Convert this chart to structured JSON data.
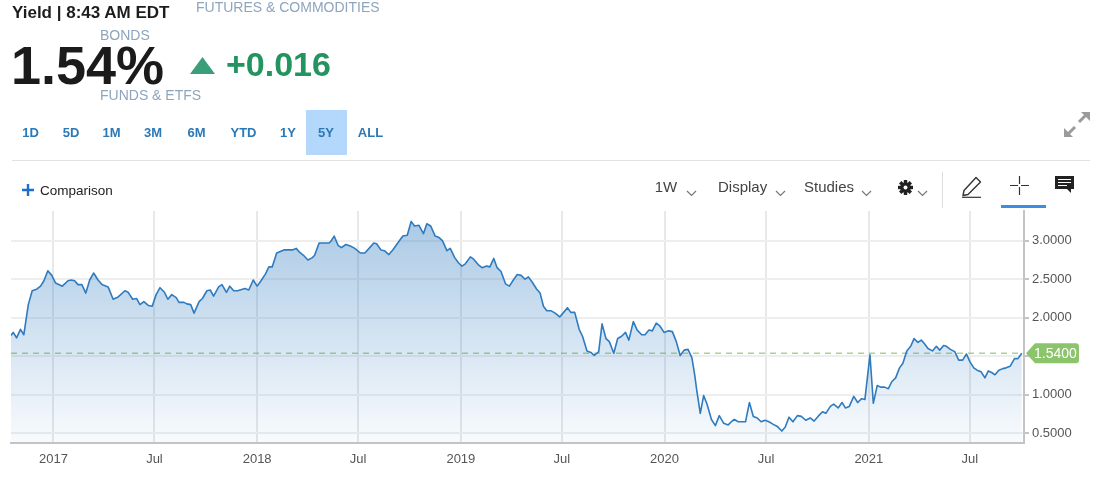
{
  "chart_data": {
    "type": "area",
    "title": "Yield | 8:43 AM EDT",
    "annotations": [
      "1.54%",
      "+0.016",
      "FUTURES & COMMODITIES",
      "BONDS",
      "FUNDS & ETFS",
      "1D",
      "5D",
      "1M",
      "3M",
      "6M",
      "YTD",
      "1Y",
      "5Y",
      "ALL",
      "Comparison",
      "1W",
      "Display",
      "Studies"
    ],
    "color": "#2e7bbf",
    "x": [
      "2016-10-17",
      "2016-10-21",
      "2016-10-27",
      "2016-11-03",
      "2016-11-09",
      "2016-11-17",
      "2016-11-24",
      "2016-12-02",
      "2016-12-09",
      "2016-12-15",
      "2016-12-22",
      "2016-12-29",
      "2017-01-05",
      "2017-01-17",
      "2017-01-27",
      "2017-02-02",
      "2017-02-08",
      "2017-02-14",
      "2017-02-21",
      "2017-02-28",
      "2017-03-07",
      "2017-03-14",
      "2017-03-22",
      "2017-03-29",
      "2017-04-09",
      "2017-04-18",
      "2017-04-27",
      "2017-05-09",
      "2017-05-15",
      "2017-05-23",
      "2017-05-30",
      "2017-06-05",
      "2017-06-12",
      "2017-06-20",
      "2017-06-27",
      "2017-07-04",
      "2017-07-11",
      "2017-07-19",
      "2017-07-25",
      "2017-08-01",
      "2017-08-09",
      "2017-08-14",
      "2017-08-23",
      "2017-08-28",
      "2017-09-04",
      "2017-09-10",
      "2017-09-19",
      "2017-09-25",
      "2017-10-03",
      "2017-10-09",
      "2017-10-15",
      "2017-10-24",
      "2017-10-30",
      "2017-11-07",
      "2017-11-13",
      "2017-11-20",
      "2017-11-27",
      "2017-12-10",
      "2017-12-17",
      "2017-12-25",
      "2018-01-01",
      "2018-01-08",
      "2018-01-16",
      "2018-01-22",
      "2018-01-28",
      "2018-02-05",
      "2018-02-18",
      "2018-03-05",
      "2018-03-12",
      "2018-03-18",
      "2018-03-25",
      "2018-04-02",
      "2018-04-10",
      "2018-04-14",
      "2018-04-22",
      "2018-05-01",
      "2018-05-10",
      "2018-05-13",
      "2018-05-19",
      "2018-05-26",
      "2018-06-01",
      "2018-06-09",
      "2018-06-17",
      "2018-06-25",
      "2018-07-05",
      "2018-07-13",
      "2018-07-23",
      "2018-07-29",
      "2018-08-03",
      "2018-08-11",
      "2018-08-17",
      "2018-08-25",
      "2018-09-01",
      "2018-09-10",
      "2018-09-19",
      "2018-09-27",
      "2018-10-04",
      "2018-10-10",
      "2018-10-18",
      "2018-10-26",
      "2018-11-01",
      "2018-11-08",
      "2018-11-16",
      "2018-11-23",
      "2018-11-29",
      "2018-12-07",
      "2018-12-13",
      "2018-12-21",
      "2018-12-28",
      "2019-01-03",
      "2019-01-09",
      "2019-01-18",
      "2019-01-24",
      "2019-02-01",
      "2019-02-08",
      "2019-02-16",
      "2019-02-22",
      "2019-03-01",
      "2019-03-07",
      "2019-03-14",
      "2019-03-22",
      "2019-03-29",
      "2019-04-05",
      "2019-04-12",
      "2019-04-19",
      "2019-04-26",
      "2019-05-02",
      "2019-05-09",
      "2019-05-17",
      "2019-05-23",
      "2019-05-29",
      "2019-06-04",
      "2019-06-12",
      "2019-06-19",
      "2019-06-27",
      "2019-07-03",
      "2019-07-11",
      "2019-07-17",
      "2019-07-24",
      "2019-08-01",
      "2019-08-07",
      "2019-08-15",
      "2019-08-22",
      "2019-08-28",
      "2019-09-05",
      "2019-09-11",
      "2019-09-18",
      "2019-09-24",
      "2019-10-02",
      "2019-10-09",
      "2019-10-16",
      "2019-10-23",
      "2019-10-29",
      "2019-11-06",
      "2019-11-13",
      "2019-11-21",
      "2019-11-27",
      "2019-12-04",
      "2019-12-10",
      "2019-12-17",
      "2019-12-24",
      "2019-12-31",
      "2020-01-08",
      "2020-01-15",
      "2020-01-22",
      "2020-01-29",
      "2020-02-05",
      "2020-02-12",
      "2020-02-19",
      "2020-02-24",
      "2020-02-28",
      "2020-03-05",
      "2020-03-11",
      "2020-03-17",
      "2020-03-25",
      "2020-04-01",
      "2020-04-08",
      "2020-04-16",
      "2020-04-24",
      "2020-05-01",
      "2020-05-05",
      "2020-05-12",
      "2020-05-18",
      "2020-05-25",
      "2020-06-01",
      "2020-06-08",
      "2020-06-15",
      "2020-06-22",
      "2020-06-29",
      "2020-07-06",
      "2020-07-13",
      "2020-07-21",
      "2020-07-29",
      "2020-08-04",
      "2020-08-11",
      "2020-08-18",
      "2020-08-26",
      "2020-09-02",
      "2020-09-10",
      "2020-09-18",
      "2020-09-25",
      "2020-10-02",
      "2020-10-10",
      "2020-10-16",
      "2020-10-24",
      "2020-10-30",
      "2020-11-07",
      "2020-11-14",
      "2020-11-20",
      "2020-11-27",
      "2020-12-05",
      "2020-12-12",
      "2020-12-19",
      "2020-12-25",
      "2021-01-03",
      "2021-01-09",
      "2021-01-16",
      "2021-01-22",
      "2021-01-29",
      "2021-02-05",
      "2021-02-11",
      "2021-02-18",
      "2021-02-25",
      "2021-03-03",
      "2021-03-10",
      "2021-03-17",
      "2021-03-23",
      "2021-03-30",
      "2021-04-05",
      "2021-04-10",
      "2021-04-17",
      "2021-04-25",
      "2021-05-02",
      "2021-05-08",
      "2021-05-15",
      "2021-05-20",
      "2021-05-27",
      "2021-06-04",
      "2021-06-11",
      "2021-06-18",
      "2021-06-25",
      "2021-07-01",
      "2021-07-08",
      "2021-07-14",
      "2021-07-21",
      "2021-07-28",
      "2021-08-03",
      "2021-08-09",
      "2021-08-15",
      "2021-08-22",
      "2021-08-29",
      "2021-09-04",
      "2021-09-11",
      "2021-09-19",
      "2021-09-25",
      "2021-10-02"
    ],
    "values": [
      1.77,
      1.81,
      1.74,
      1.85,
      1.78,
      2.17,
      2.35,
      2.37,
      2.41,
      2.48,
      2.61,
      2.55,
      2.45,
      2.41,
      2.48,
      2.49,
      2.48,
      2.43,
      2.43,
      2.32,
      2.49,
      2.58,
      2.49,
      2.43,
      2.4,
      2.24,
      2.27,
      2.35,
      2.33,
      2.24,
      2.25,
      2.17,
      2.21,
      2.16,
      2.15,
      2.3,
      2.39,
      2.33,
      2.24,
      2.3,
      2.26,
      2.2,
      2.2,
      2.18,
      2.17,
      2.06,
      2.21,
      2.25,
      2.35,
      2.36,
      2.28,
      2.4,
      2.43,
      2.33,
      2.41,
      2.35,
      2.35,
      2.38,
      2.36,
      2.49,
      2.41,
      2.48,
      2.57,
      2.66,
      2.66,
      2.84,
      2.88,
      2.88,
      2.9,
      2.85,
      2.81,
      2.75,
      2.78,
      2.81,
      2.97,
      2.97,
      2.97,
      2.99,
      3.06,
      2.94,
      2.91,
      2.95,
      2.93,
      2.9,
      2.84,
      2.84,
      2.92,
      2.97,
      2.96,
      2.88,
      2.87,
      2.82,
      2.88,
      2.97,
      3.06,
      3.07,
      3.25,
      3.19,
      3.2,
      3.09,
      3.22,
      3.19,
      3.06,
      3.04,
      3.0,
      2.87,
      2.9,
      2.78,
      2.71,
      2.67,
      2.7,
      2.79,
      2.76,
      2.69,
      2.65,
      2.67,
      2.66,
      2.77,
      2.65,
      2.6,
      2.44,
      2.41,
      2.49,
      2.56,
      2.55,
      2.5,
      2.53,
      2.46,
      2.37,
      2.32,
      2.15,
      2.09,
      2.09,
      2.06,
      2.01,
      2.06,
      2.13,
      2.07,
      2.07,
      1.85,
      1.76,
      1.57,
      1.55,
      1.51,
      1.56,
      1.92,
      1.73,
      1.69,
      1.54,
      1.73,
      1.76,
      1.81,
      1.71,
      1.95,
      1.84,
      1.78,
      1.78,
      1.84,
      1.83,
      1.93,
      1.89,
      1.81,
      1.83,
      1.82,
      1.69,
      1.51,
      1.58,
      1.59,
      1.48,
      1.26,
      1.04,
      0.76,
      0.99,
      0.88,
      0.68,
      0.6,
      0.73,
      0.63,
      0.61,
      0.66,
      0.68,
      0.65,
      0.65,
      0.65,
      0.9,
      0.72,
      0.7,
      0.65,
      0.67,
      0.65,
      0.62,
      0.59,
      0.53,
      0.58,
      0.71,
      0.65,
      0.73,
      0.72,
      0.67,
      0.7,
      0.66,
      0.72,
      0.78,
      0.76,
      0.85,
      0.88,
      0.83,
      0.9,
      0.83,
      0.85,
      0.98,
      0.9,
      0.95,
      0.94,
      1.52,
      0.89,
      1.12,
      1.1,
      1.1,
      1.08,
      1.17,
      1.22,
      1.35,
      1.41,
      1.57,
      1.63,
      1.73,
      1.68,
      1.71,
      1.67,
      1.6,
      1.57,
      1.63,
      1.58,
      1.64,
      1.63,
      1.59,
      1.56,
      1.45,
      1.45,
      1.53,
      1.43,
      1.35,
      1.32,
      1.3,
      1.22,
      1.31,
      1.29,
      1.26,
      1.32,
      1.34,
      1.35,
      1.37,
      1.47,
      1.47,
      1.54
    ],
    "xlim": [
      "2016-10-17",
      "2021-10-06"
    ],
    "xticks": [
      {
        "value": "2017-01",
        "label": "2017"
      },
      {
        "value": "2017-07",
        "label": "Jul"
      },
      {
        "value": "2018-01",
        "label": "2018"
      },
      {
        "value": "2018-07",
        "label": "Jul"
      },
      {
        "value": "2019-01",
        "label": "2019"
      },
      {
        "value": "2019-07",
        "label": "Jul"
      },
      {
        "value": "2020-01",
        "label": "2020"
      },
      {
        "value": "2020-07",
        "label": "Jul"
      },
      {
        "value": "2021-01",
        "label": "2021"
      },
      {
        "value": "2021-07",
        "label": "Jul"
      }
    ],
    "ylim": [
      0.375,
      3.385
    ],
    "yticks": [
      {
        "value": 0.5,
        "label": "0.5000"
      },
      {
        "value": 1,
        "label": "1.0000"
      },
      {
        "value": 1.5,
        "label": null
      },
      {
        "value": 2,
        "label": "2.0000"
      },
      {
        "value": 2.5,
        "label": "2.5000"
      },
      {
        "value": 3,
        "label": "3.0000"
      }
    ],
    "grid": true,
    "ref_lines": [
      {
        "axis": "y",
        "value": 1.54,
        "label": "1.5400",
        "color": "#8cc46c",
        "line_style": "dashed"
      }
    ]
  }
}
